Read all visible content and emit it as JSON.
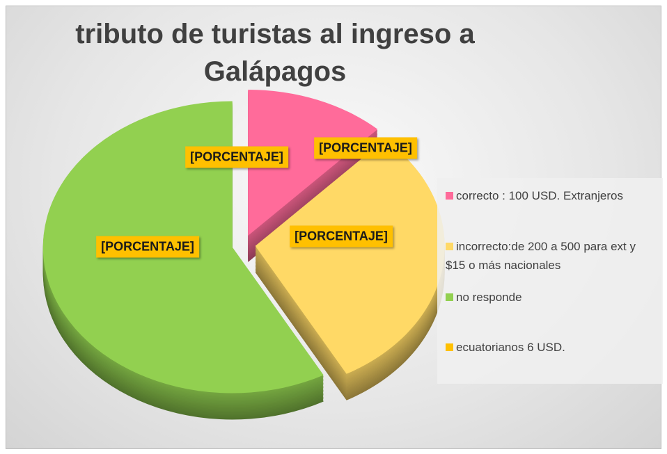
{
  "chart_data": {
    "type": "pie",
    "title": "tributo de turistas al ingreso a Galápagos",
    "categories": [
      "correcto : 100 USD. Extranjeros",
      "incorrecto:de 200 a 500 para ext y $15 o más nacionales",
      "no responde",
      "ecuatorianos 6 USD."
    ],
    "values": [
      12,
      30,
      58,
      0
    ],
    "value_labels": [
      "[PORCENTAJE]",
      "[PORCENTAJE]",
      "[PORCENTAJE]",
      "[PORCENTAJE]"
    ],
    "colors": [
      "#ff6b9a",
      "#ffd966",
      "#92d050",
      "#ffc000"
    ],
    "legend": "right"
  }
}
